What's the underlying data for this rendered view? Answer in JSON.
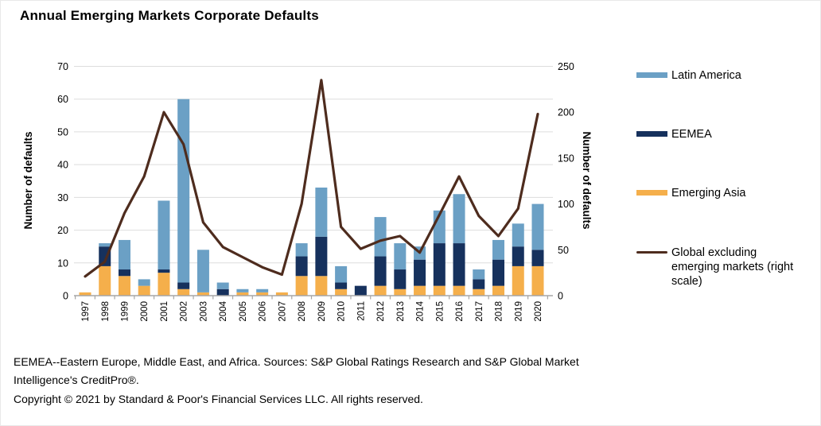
{
  "title": "Annual Emerging Markets Corporate Defaults",
  "left_axis": {
    "label": "Number of defaults",
    "ticks": [
      0,
      10,
      20,
      30,
      40,
      50,
      60,
      70
    ],
    "max": 70
  },
  "right_axis": {
    "label": "Number of defaults",
    "ticks": [
      0,
      50,
      100,
      150,
      200,
      250
    ],
    "max": 250
  },
  "legend": [
    {
      "label": "Latin America",
      "color": "#6BA0C5",
      "type": "bar"
    },
    {
      "label": "EEMEA",
      "color": "#16315D",
      "type": "bar"
    },
    {
      "label": "Emerging Asia",
      "color": "#F5AF4B",
      "type": "bar"
    },
    {
      "label": "Global excluding emerging markets (right scale)",
      "color": "#4E2C1E",
      "type": "line"
    }
  ],
  "footnote": "EEMEA--Eastern Europe, Middle East, and Africa. Sources: S&P Global Ratings Research and S&P Global Market Intelligence's CreditPro®.",
  "copyright": "Copyright © 2021 by Standard & Poor's Financial Services LLC. All rights reserved.",
  "chart_data": {
    "type": "bar",
    "subtype": "stacked-bars-with-line",
    "title": "Annual Emerging Markets Corporate Defaults",
    "categories": [
      "1997",
      "1998",
      "1999",
      "2000",
      "2001",
      "2002",
      "2003",
      "2004",
      "2005",
      "2006",
      "2007",
      "2008",
      "2009",
      "2010",
      "2011",
      "2012",
      "2013",
      "2014",
      "2015",
      "2016",
      "2017",
      "2018",
      "2019",
      "2020"
    ],
    "series": [
      {
        "name": "Emerging Asia",
        "render": "bar",
        "axis": "left",
        "color": "#F5AF4B",
        "values": [
          1,
          9,
          6,
          3,
          7,
          2,
          1,
          0,
          1,
          1,
          1,
          6,
          6,
          2,
          0,
          3,
          2,
          3,
          3,
          3,
          2,
          3,
          9,
          9
        ]
      },
      {
        "name": "EEMEA",
        "render": "bar",
        "axis": "left",
        "color": "#16315D",
        "values": [
          0,
          6,
          2,
          0,
          1,
          2,
          0,
          2,
          0,
          0,
          0,
          6,
          12,
          2,
          3,
          9,
          6,
          8,
          13,
          13,
          3,
          8,
          6,
          5
        ]
      },
      {
        "name": "Latin America",
        "render": "bar",
        "axis": "left",
        "color": "#6BA0C5",
        "values": [
          0,
          1,
          9,
          2,
          21,
          56,
          13,
          2,
          1,
          1,
          0,
          4,
          15,
          5,
          0,
          12,
          8,
          4,
          10,
          15,
          3,
          6,
          7,
          14
        ]
      },
      {
        "name": "Global excluding emerging markets (right scale)",
        "render": "line",
        "axis": "right",
        "color": "#4E2C1E",
        "values": [
          21,
          37,
          90,
          130,
          200,
          165,
          80,
          53,
          42,
          31,
          23,
          100,
          235,
          75,
          51,
          60,
          65,
          47,
          88,
          130,
          87,
          65,
          95,
          198
        ]
      }
    ],
    "stacked_totals": [
      1,
      16,
      17,
      5,
      29,
      60,
      14,
      4,
      2,
      2,
      1,
      16,
      33,
      9,
      3,
      24,
      16,
      15,
      26,
      31,
      8,
      17,
      22,
      28
    ],
    "xlabel": "",
    "ylabel_left": "Number of defaults",
    "ylabel_right": "Number of defaults",
    "ylim_left": [
      0,
      70
    ],
    "ylim_right": [
      0,
      250
    ],
    "grid": true,
    "legend_position": "right",
    "colors": {
      "grid": "#DDDDDD",
      "axis": "#A6A6A6",
      "text": "#000000"
    }
  }
}
